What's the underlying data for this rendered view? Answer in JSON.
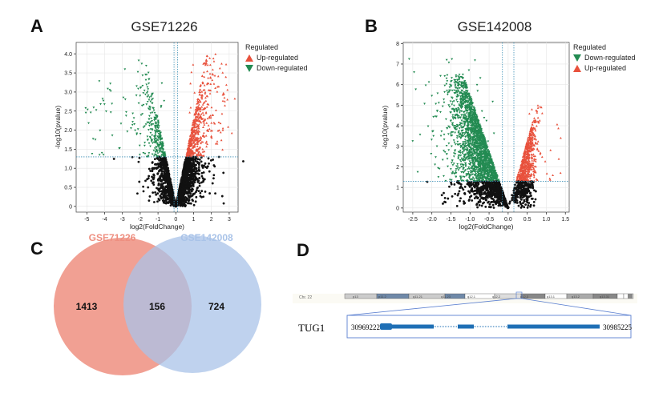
{
  "panels": {
    "a": "A",
    "b": "B",
    "c": "C",
    "d": "D"
  },
  "chart_data": [
    {
      "type": "scatter",
      "subtype": "volcano",
      "title": "GSE71226",
      "xlabel": "log2(FoldChange)",
      "ylabel": "-log10(pvalue)",
      "xlim": [
        -5.6,
        3.5
      ],
      "ylim": [
        -0.15,
        4.3
      ],
      "xticks": [
        -5,
        -4,
        -3,
        -2,
        -1,
        0,
        1,
        2,
        3
      ],
      "yticks": [
        "0",
        "0.5",
        "1.0",
        "1.5",
        "2.0",
        "2.5",
        "3.0",
        "3.5",
        "4.0"
      ],
      "thresholds": {
        "pvalue_line": 1.3,
        "fc_lines": [
          -0.1,
          0.1
        ]
      },
      "grid": true,
      "legend": {
        "title": "Regulated",
        "position": "right",
        "items": [
          {
            "name": "Up-regulated",
            "color": "#e8513c",
            "marker": "triangle-up"
          },
          {
            "name": "Down-regulated",
            "color": "#238b52",
            "marker": "triangle-down"
          }
        ]
      }
    },
    {
      "type": "scatter",
      "subtype": "volcano",
      "title": "GSE142008",
      "xlabel": "log2(FoldChange)",
      "ylabel": "-log10(pvalue)",
      "xlim": [
        -2.75,
        1.6
      ],
      "ylim": [
        -0.2,
        8.05
      ],
      "xticks": [
        "-2.5",
        "-2.0",
        "-1.5",
        "-1.0",
        "-0.5",
        "0.0",
        "0.5",
        "1.0",
        "1.5"
      ],
      "yticks": [
        "0",
        "1",
        "2",
        "3",
        "4",
        "5",
        "6",
        "7",
        "8"
      ],
      "thresholds": {
        "pvalue_line": 1.3,
        "fc_lines": [
          -0.15,
          0.15
        ]
      },
      "grid": true,
      "legend": {
        "title": "Regulated",
        "position": "right",
        "items": [
          {
            "name": "Down-regulated",
            "color": "#238b52",
            "marker": "triangle-down"
          },
          {
            "name": "Up-regulated",
            "color": "#e8513c",
            "marker": "triangle-up"
          }
        ]
      }
    },
    {
      "type": "venn",
      "sets": [
        {
          "name": "GSE71226",
          "color": "#ee8f80",
          "only": 1413
        },
        {
          "name": "GSE142008",
          "color": "#a9c3e8",
          "only": 724
        }
      ],
      "intersection": 156
    }
  ],
  "gene": {
    "chromosome": "Chr. 22",
    "bands": [
      "p13",
      "p11.2",
      "q11.21",
      "q11.23",
      "q12.1",
      "q12.2",
      "q12.3",
      "q13.1",
      "q13.2",
      "q13.31"
    ],
    "name": "TUG1",
    "start": "30969222",
    "end": "30985225",
    "color": "#1f6fb5"
  }
}
